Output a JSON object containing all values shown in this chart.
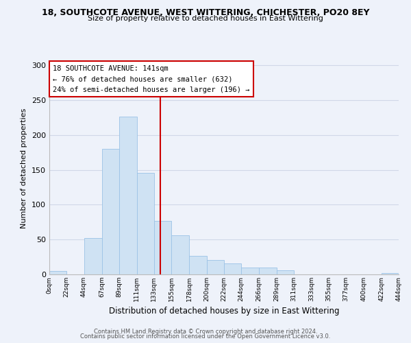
{
  "title": "18, SOUTHCOTE AVENUE, WEST WITTERING, CHICHESTER, PO20 8EY",
  "subtitle": "Size of property relative to detached houses in East Wittering",
  "xlabel": "Distribution of detached houses by size in East Wittering",
  "ylabel": "Number of detached properties",
  "bar_color": "#cfe2f3",
  "bar_edge_color": "#9bc2e6",
  "grid_color": "#d0d8e8",
  "bg_color": "#eef2fa",
  "annotation_box_color": "#cc0000",
  "vline_color": "#cc0000",
  "vline_x": 141,
  "annotation_line1": "18 SOUTHCOTE AVENUE: 141sqm",
  "annotation_line2": "← 76% of detached houses are smaller (632)",
  "annotation_line3": "24% of semi-detached houses are larger (196) →",
  "footer1": "Contains HM Land Registry data © Crown copyright and database right 2024.",
  "footer2": "Contains public sector information licensed under the Open Government Licence v3.0.",
  "bins": [
    0,
    22,
    44,
    67,
    89,
    111,
    133,
    155,
    178,
    200,
    222,
    244,
    266,
    289,
    311,
    333,
    355,
    377,
    400,
    422,
    444
  ],
  "bin_labels": [
    "0sqm",
    "22sqm",
    "44sqm",
    "67sqm",
    "89sqm",
    "111sqm",
    "133sqm",
    "155sqm",
    "178sqm",
    "200sqm",
    "222sqm",
    "244sqm",
    "266sqm",
    "289sqm",
    "311sqm",
    "333sqm",
    "355sqm",
    "377sqm",
    "400sqm",
    "422sqm",
    "444sqm"
  ],
  "counts": [
    5,
    0,
    52,
    180,
    226,
    146,
    77,
    56,
    27,
    21,
    16,
    10,
    10,
    6,
    0,
    0,
    0,
    0,
    0,
    2
  ],
  "ylim": [
    0,
    305
  ],
  "yticks": [
    0,
    50,
    100,
    150,
    200,
    250,
    300
  ]
}
